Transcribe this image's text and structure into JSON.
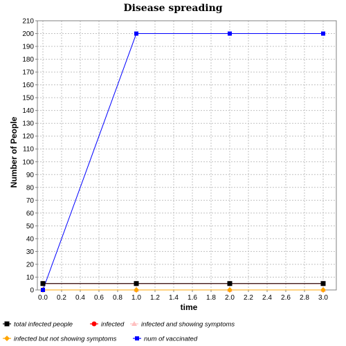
{
  "chart_data": {
    "type": "line",
    "title": "Disease spreading",
    "xlabel": "time",
    "ylabel": "Number of People",
    "xlim": [
      0.0,
      3.0
    ],
    "ylim": [
      0,
      210
    ],
    "x_ticks": [
      "0.0",
      "0.2",
      "0.4",
      "0.6",
      "0.8",
      "1.0",
      "1.2",
      "1.4",
      "1.6",
      "1.8",
      "2.0",
      "2.2",
      "2.4",
      "2.6",
      "2.8",
      "3.0"
    ],
    "y_ticks": [
      0,
      10,
      20,
      30,
      40,
      50,
      60,
      70,
      80,
      90,
      100,
      110,
      120,
      130,
      140,
      150,
      160,
      170,
      180,
      190,
      200,
      210
    ],
    "grid": true,
    "legend_position": "bottom",
    "x": [
      0,
      1,
      2,
      3
    ],
    "series": [
      {
        "name": "total infected people",
        "values": [
          5,
          5,
          5,
          5
        ],
        "color": "#000000",
        "marker": "square"
      },
      {
        "name": "infected",
        "values": [
          5,
          5,
          5,
          5
        ],
        "color": "#ff0000",
        "marker": "circle"
      },
      {
        "name": "infected and showing symptoms",
        "values": [
          0,
          0,
          0,
          0
        ],
        "color": "#ffc0c0",
        "marker": "triangle"
      },
      {
        "name": "infected but not showing symptoms",
        "values": [
          0,
          0,
          0,
          0
        ],
        "color": "#ffa500",
        "marker": "diamond"
      },
      {
        "name": "num of vaccinated",
        "values": [
          0,
          200,
          200,
          200
        ],
        "color": "#0000ff",
        "marker": "square-small"
      }
    ]
  }
}
